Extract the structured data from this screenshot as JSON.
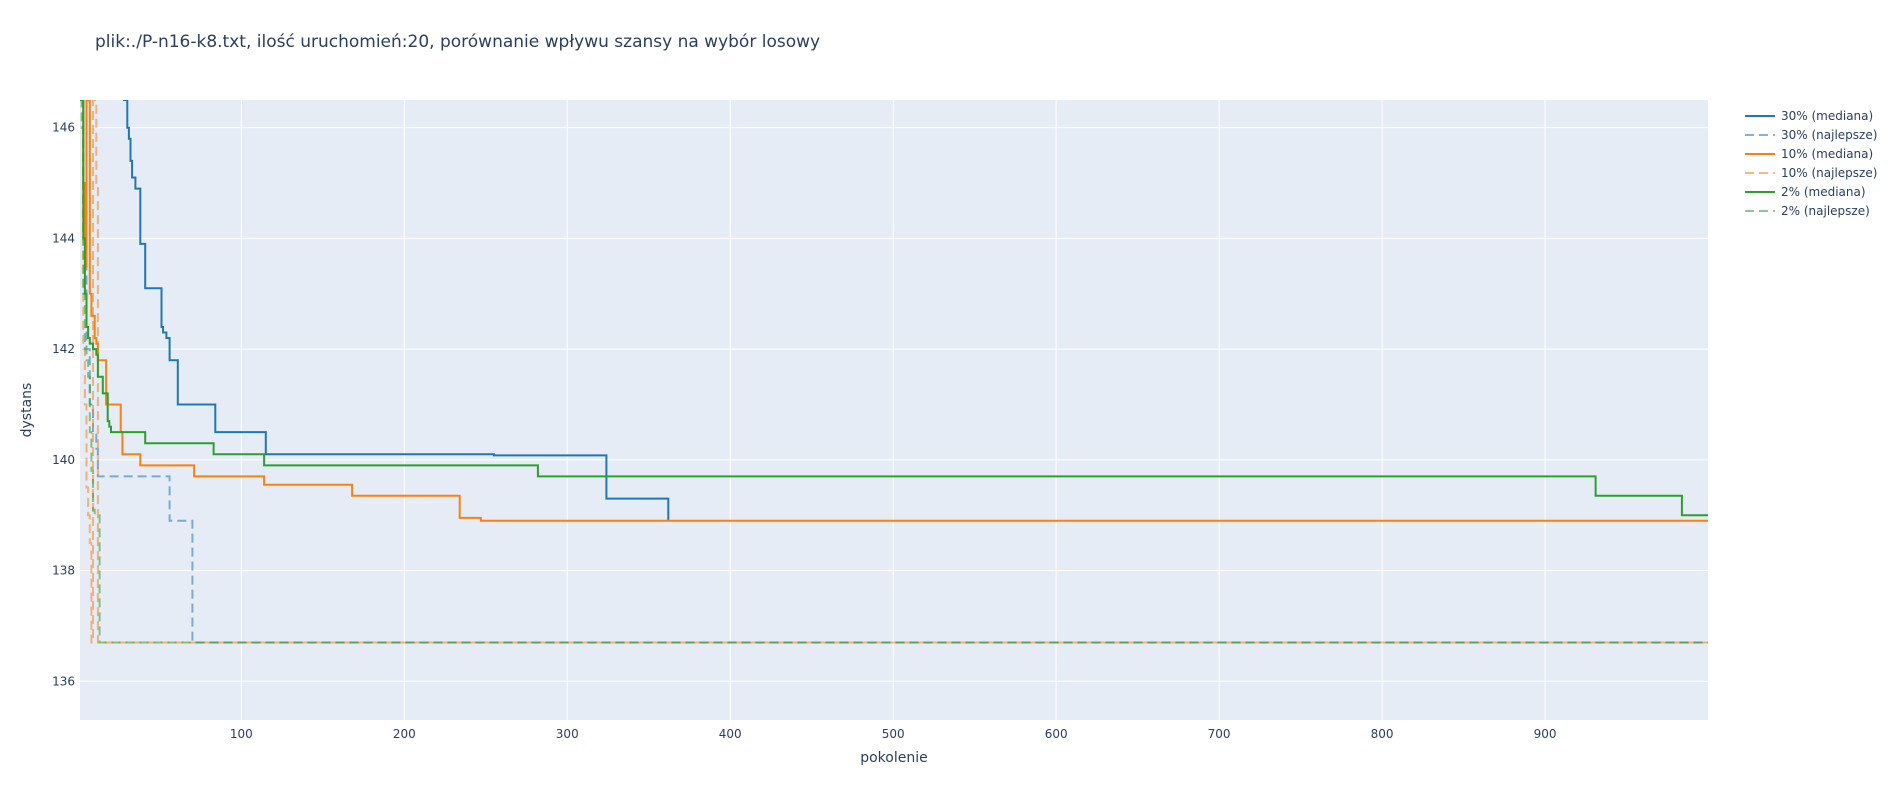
{
  "chart_data": {
    "type": "line",
    "title": "plik:./P-n16-k8.txt, ilość uruchomień:20, porównanie wpływu szansy na wybór losowy",
    "xlabel": "pokolenie",
    "ylabel": "dystans",
    "xlim": [
      1,
      1000
    ],
    "ylim": [
      135.3,
      146.5
    ],
    "x_ticks": [
      100,
      200,
      300,
      400,
      500,
      600,
      700,
      800,
      900
    ],
    "y_ticks": [
      136,
      138,
      140,
      142,
      144,
      146
    ],
    "grid": true,
    "legend_position": "right",
    "plot_bgcolor": "#E5ECF6",
    "series": [
      {
        "name": "30% (mediana)",
        "color": "#1f77b4",
        "dash": "solid",
        "opacity": 1,
        "x": [
          1,
          28,
          30,
          31,
          32,
          33,
          34,
          35,
          36,
          37,
          38,
          39,
          40,
          41,
          42,
          50,
          51,
          52,
          53,
          54,
          55,
          56,
          57,
          58,
          59,
          60,
          61,
          62,
          63,
          64,
          65,
          84,
          85,
          114,
          115,
          254,
          255,
          323,
          324,
          361,
          362
        ],
        "y": [
          155,
          146.5,
          146,
          145.8,
          145.4,
          145.1,
          145.1,
          144.9,
          144.9,
          144.9,
          143.9,
          143.9,
          143.9,
          143.1,
          143.1,
          143.1,
          142.4,
          142.3,
          142.3,
          142.2,
          142.2,
          141.8,
          141.8,
          141.8,
          141.8,
          141.8,
          141.0,
          141.0,
          141.0,
          141.0,
          141.0,
          140.5,
          140.5,
          140.5,
          140.1,
          140.1,
          140.08,
          140.08,
          139.3,
          139.3,
          138.9
        ]
      },
      {
        "name": "30% (najlepsze)",
        "color": "#1f77b4",
        "dash": "dash",
        "opacity": 0.55,
        "x": [
          1,
          3,
          5,
          7,
          9,
          11,
          12,
          13,
          55,
          56,
          69,
          70,
          1000
        ],
        "y": [
          146.5,
          144,
          142,
          141,
          140.5,
          140.2,
          139.7,
          139.7,
          139.7,
          138.9,
          138.9,
          136.7,
          136.7
        ]
      },
      {
        "name": "10% (mediana)",
        "color": "#ff7f0e",
        "dash": "solid",
        "opacity": 1,
        "x": [
          1,
          3,
          4,
          5,
          6,
          7,
          8,
          9,
          10,
          11,
          12,
          13,
          16,
          17,
          18,
          25,
          26,
          27,
          37,
          38,
          70,
          71,
          113,
          114,
          167,
          168,
          233,
          234,
          246,
          247,
          1000
        ],
        "y": [
          146.5,
          145,
          143.5,
          146.5,
          146.5,
          143,
          142.6,
          142.6,
          142.2,
          142.1,
          141.8,
          141.8,
          141.8,
          141.0,
          141.0,
          141.0,
          140.5,
          140.1,
          140.1,
          139.9,
          139.9,
          139.7,
          139.7,
          139.55,
          139.55,
          139.35,
          139.35,
          138.95,
          138.95,
          138.9,
          138.9
        ]
      },
      {
        "name": "10% (najlepsze)",
        "color": "#ff7f0e",
        "dash": "dash",
        "opacity": 0.55,
        "x": [
          1,
          3,
          4,
          5,
          6,
          7,
          8,
          9,
          10,
          11,
          12,
          1000
        ],
        "y": [
          146.5,
          142,
          141,
          139.5,
          139,
          138.5,
          136.7,
          146.5,
          146.5,
          145,
          136.7,
          136.7
        ]
      },
      {
        "name": "2% (mediana)",
        "color": "#2ca02c",
        "dash": "solid",
        "opacity": 1,
        "x": [
          1,
          2,
          3,
          4,
          5,
          6,
          7,
          9,
          10,
          11,
          12,
          13,
          14,
          15,
          18,
          19,
          20,
          21,
          22,
          40,
          41,
          82,
          83,
          113,
          114,
          281,
          282,
          930,
          931,
          983,
          984,
          1000
        ],
        "y": [
          146.5,
          146.5,
          144,
          143,
          142.4,
          142.2,
          142.1,
          142.0,
          142.0,
          141.9,
          141.5,
          141.5,
          141.5,
          141.2,
          140.7,
          140.6,
          140.5,
          140.5,
          140.5,
          140.5,
          140.3,
          140.3,
          140.1,
          140.1,
          139.9,
          139.9,
          139.7,
          139.7,
          139.35,
          139.35,
          139.0,
          139.0
        ]
      },
      {
        "name": "2% (najlepsze)",
        "color": "#2ca02c",
        "dash": "dash",
        "opacity": 0.55,
        "x": [
          1,
          2,
          3,
          4,
          5,
          6,
          7,
          8,
          9,
          10,
          12,
          13,
          14,
          1000
        ],
        "y": [
          146.5,
          146,
          143,
          142,
          141.8,
          141.5,
          140.5,
          139.8,
          139.1,
          139.0,
          139.0,
          136.7,
          136.7,
          136.7
        ]
      }
    ]
  }
}
